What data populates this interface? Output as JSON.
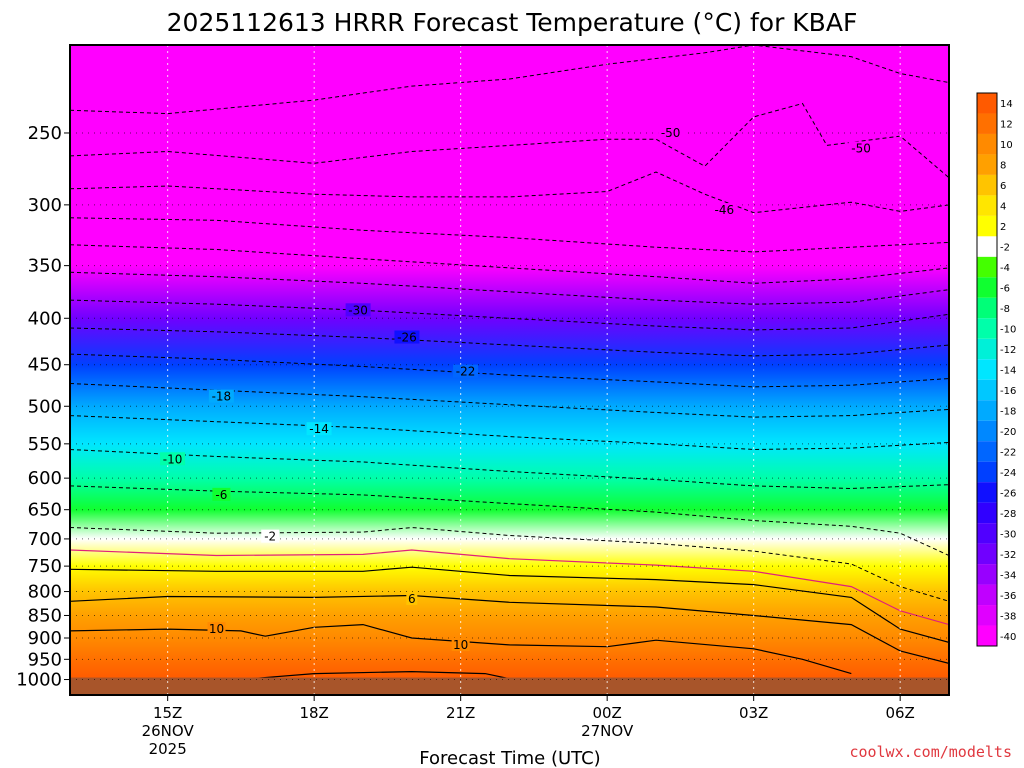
{
  "chart_data": {
    "type": "heatmap",
    "title": "2025112613 HRRR Forecast Temperature (°C) for KBAF",
    "xlabel": "Forecast Time (UTC)",
    "ylabel": "",
    "credit": "coolwx.com/modelts",
    "y_axis": {
      "unit": "hPa",
      "scale": "log",
      "range": [
        1040,
        200
      ],
      "ticks": [
        "250",
        "300",
        "350",
        "400",
        "450",
        "500",
        "550",
        "600",
        "650",
        "700",
        "750",
        "800",
        "850",
        "900",
        "950",
        "1000"
      ]
    },
    "x_axis": {
      "range_hours": [
        13,
        31
      ],
      "ticks": [
        {
          "hour": 15,
          "label": "15Z",
          "sub1": "26NOV",
          "sub2": "2025"
        },
        {
          "hour": 18,
          "label": "18Z",
          "sub1": "",
          "sub2": ""
        },
        {
          "hour": 21,
          "label": "21Z",
          "sub1": "",
          "sub2": ""
        },
        {
          "hour": 24,
          "label": "00Z",
          "sub1": "27NOV",
          "sub2": ""
        },
        {
          "hour": 27,
          "label": "03Z",
          "sub1": "",
          "sub2": ""
        },
        {
          "hour": 30,
          "label": "06Z",
          "sub1": "",
          "sub2": ""
        }
      ]
    },
    "colorbar": {
      "levels": [
        "14",
        "12",
        "10",
        "8",
        "6",
        "4",
        "2",
        "-2",
        "-4",
        "-6",
        "-8",
        "-10",
        "-12",
        "-14",
        "-16",
        "-18",
        "-20",
        "-22",
        "-24",
        "-26",
        "-28",
        "-30",
        "-32",
        "-34",
        "-36",
        "-38",
        "-40"
      ],
      "colors": [
        "#ff5a00",
        "#ff7000",
        "#ff8a00",
        "#ffa000",
        "#ffc400",
        "#ffe600",
        "#ffff00",
        "#ffffff",
        "#44ff00",
        "#10ff30",
        "#00ff78",
        "#00ffaa",
        "#00f0d8",
        "#00e6ff",
        "#00c8ff",
        "#00aaff",
        "#0088ff",
        "#0066ff",
        "#0040ff",
        "#1010ff",
        "#3000ff",
        "#5000ff",
        "#7000ff",
        "#9800ff",
        "#c000ff",
        "#e000ff",
        "#ff00ff"
      ]
    },
    "temperature_profile": [
      {
        "p": 220,
        "t": -54
      },
      {
        "p": 250,
        "t": -52
      },
      {
        "p": 300,
        "t": -47
      },
      {
        "p": 350,
        "t": -40
      },
      {
        "p": 400,
        "t": -31
      },
      {
        "p": 450,
        "t": -24
      },
      {
        "p": 500,
        "t": -18
      },
      {
        "p": 550,
        "t": -13
      },
      {
        "p": 600,
        "t": -9
      },
      {
        "p": 650,
        "t": -5
      },
      {
        "p": 700,
        "t": -1
      },
      {
        "p": 750,
        "t": 2
      },
      {
        "p": 800,
        "t": 6
      },
      {
        "p": 850,
        "t": 8
      },
      {
        "p": 900,
        "t": 10
      },
      {
        "p": 950,
        "t": 12
      },
      {
        "p": 1000,
        "t": 14
      }
    ],
    "ground_pressure_hpa": 995,
    "ground_color": "#a8552a",
    "contours": [
      {
        "value": -50,
        "dashed": true,
        "pts": [
          [
            13,
            236
          ],
          [
            15,
            238
          ],
          [
            18,
            230
          ],
          [
            20,
            222
          ],
          [
            22,
            218
          ],
          [
            24,
            210
          ],
          [
            26,
            204
          ],
          [
            27,
            200
          ],
          [
            29,
            206
          ],
          [
            30,
            215
          ],
          [
            31,
            220
          ]
        ]
      },
      {
        "value": -50,
        "dashed": true,
        "pts": [
          [
            13,
            265
          ],
          [
            15,
            262
          ],
          [
            18,
            270
          ],
          [
            20,
            262
          ],
          [
            22,
            258
          ],
          [
            24,
            254
          ],
          [
            25,
            254
          ],
          [
            26,
            272
          ],
          [
            27,
            240
          ],
          [
            28,
            232
          ],
          [
            28.5,
            258
          ],
          [
            30,
            252
          ],
          [
            31,
            280
          ]
        ]
      },
      {
        "value": -46,
        "dashed": true,
        "pts": [
          [
            13,
            288
          ],
          [
            15,
            286
          ],
          [
            18,
            292
          ],
          [
            20,
            294
          ],
          [
            22,
            294
          ],
          [
            24,
            290
          ],
          [
            25,
            276
          ],
          [
            26,
            292
          ],
          [
            27,
            306
          ],
          [
            29,
            298
          ],
          [
            30,
            305
          ],
          [
            31,
            300
          ]
        ]
      },
      {
        "value": -42,
        "dashed": true,
        "pts": [
          [
            13,
            310
          ],
          [
            16,
            312
          ],
          [
            19,
            320
          ],
          [
            22,
            326
          ],
          [
            25,
            334
          ],
          [
            27,
            338
          ],
          [
            29,
            334
          ],
          [
            31,
            330
          ]
        ]
      },
      {
        "value": -38,
        "dashed": true,
        "pts": [
          [
            13,
            332
          ],
          [
            16,
            336
          ],
          [
            19,
            344
          ],
          [
            22,
            352
          ],
          [
            25,
            360
          ],
          [
            27,
            366
          ],
          [
            29,
            362
          ],
          [
            31,
            352
          ]
        ]
      },
      {
        "value": -34,
        "dashed": true,
        "pts": [
          [
            13,
            356
          ],
          [
            16,
            360
          ],
          [
            19,
            366
          ],
          [
            22,
            374
          ],
          [
            25,
            382
          ],
          [
            27,
            386
          ],
          [
            29,
            384
          ],
          [
            31,
            372
          ]
        ]
      },
      {
        "value": -30,
        "dashed": true,
        "pts": [
          [
            13,
            382
          ],
          [
            16,
            386
          ],
          [
            19,
            392
          ],
          [
            22,
            400
          ],
          [
            25,
            408
          ],
          [
            27,
            412
          ],
          [
            29,
            410
          ],
          [
            31,
            396
          ]
        ]
      },
      {
        "value": -26,
        "dashed": true,
        "pts": [
          [
            13,
            410
          ],
          [
            16,
            414
          ],
          [
            19,
            420
          ],
          [
            22,
            428
          ],
          [
            25,
            436
          ],
          [
            27,
            440
          ],
          [
            29,
            438
          ],
          [
            31,
            428
          ]
        ]
      },
      {
        "value": -22,
        "dashed": true,
        "pts": [
          [
            13,
            438
          ],
          [
            16,
            444
          ],
          [
            19,
            452
          ],
          [
            22,
            462
          ],
          [
            25,
            470
          ],
          [
            27,
            476
          ],
          [
            29,
            474
          ],
          [
            31,
            466
          ]
        ]
      },
      {
        "value": -18,
        "dashed": true,
        "pts": [
          [
            13,
            472
          ],
          [
            16,
            480
          ],
          [
            19,
            488
          ],
          [
            22,
            498
          ],
          [
            25,
            508
          ],
          [
            27,
            514
          ],
          [
            29,
            512
          ],
          [
            31,
            504
          ]
        ]
      },
      {
        "value": -14,
        "dashed": true,
        "pts": [
          [
            13,
            512
          ],
          [
            16,
            520
          ],
          [
            19,
            528
          ],
          [
            22,
            540
          ],
          [
            25,
            550
          ],
          [
            27,
            558
          ],
          [
            29,
            556
          ],
          [
            31,
            548
          ]
        ]
      },
      {
        "value": -10,
        "dashed": true,
        "pts": [
          [
            13,
            558
          ],
          [
            16,
            568
          ],
          [
            19,
            576
          ],
          [
            22,
            590
          ],
          [
            25,
            602
          ],
          [
            27,
            612
          ],
          [
            29,
            616
          ],
          [
            31,
            610
          ]
        ]
      },
      {
        "value": -6,
        "dashed": true,
        "pts": [
          [
            13,
            612
          ],
          [
            16,
            620
          ],
          [
            19,
            626
          ],
          [
            22,
            640
          ],
          [
            25,
            654
          ],
          [
            27,
            668
          ],
          [
            29,
            678
          ],
          [
            30,
            690
          ],
          [
            31,
            730
          ]
        ]
      },
      {
        "value": -2,
        "dashed": true,
        "pts": [
          [
            13,
            680
          ],
          [
            16,
            690
          ],
          [
            19,
            688
          ],
          [
            20,
            680
          ],
          [
            22,
            694
          ],
          [
            25,
            708
          ],
          [
            27,
            722
          ],
          [
            29,
            746
          ],
          [
            30,
            790
          ],
          [
            31,
            820
          ]
        ]
      },
      {
        "value": 0,
        "dashed": false,
        "color": "#e0207a",
        "pts": [
          [
            13,
            720
          ],
          [
            16,
            730
          ],
          [
            19,
            728
          ],
          [
            20,
            720
          ],
          [
            22,
            736
          ],
          [
            25,
            748
          ],
          [
            27,
            760
          ],
          [
            29,
            790
          ],
          [
            30,
            840
          ],
          [
            31,
            870
          ]
        ]
      },
      {
        "value": 2,
        "dashed": false,
        "pts": [
          [
            13,
            756
          ],
          [
            16,
            760
          ],
          [
            19,
            760
          ],
          [
            20,
            752
          ],
          [
            22,
            768
          ],
          [
            25,
            776
          ],
          [
            27,
            786
          ],
          [
            29,
            812
          ],
          [
            30,
            880
          ],
          [
            31,
            910
          ]
        ]
      },
      {
        "value": 6,
        "dashed": false,
        "pts": [
          [
            13,
            820
          ],
          [
            15,
            810
          ],
          [
            18,
            812
          ],
          [
            20,
            808
          ],
          [
            22,
            822
          ],
          [
            25,
            832
          ],
          [
            27,
            850
          ],
          [
            29,
            870
          ],
          [
            30,
            930
          ],
          [
            31,
            960
          ]
        ]
      },
      {
        "value": 10,
        "dashed": false,
        "pts": [
          [
            13,
            884
          ],
          [
            15,
            880
          ],
          [
            16.5,
            884
          ],
          [
            17,
            896
          ],
          [
            18,
            876
          ],
          [
            19,
            870
          ],
          [
            20,
            900
          ],
          [
            22,
            916
          ],
          [
            24,
            920
          ],
          [
            25,
            905
          ],
          [
            27,
            925
          ],
          [
            28,
            950
          ],
          [
            29,
            985
          ]
        ]
      },
      {
        "value": 14,
        "dashed": false,
        "pts": [
          [
            16.5,
            1000
          ],
          [
            18,
            985
          ],
          [
            20,
            980
          ],
          [
            21.5,
            985
          ],
          [
            22,
            998
          ]
        ]
      }
    ],
    "contour_labels": [
      {
        "text": "-50",
        "x": 25.3,
        "y": 250
      },
      {
        "text": "-50",
        "x": 29.2,
        "y": 260
      },
      {
        "text": "-46",
        "x": 26.4,
        "y": 304
      },
      {
        "text": "-30",
        "x": 18.9,
        "y": 392
      },
      {
        "text": "-26",
        "x": 19.9,
        "y": 420
      },
      {
        "text": "-22",
        "x": 21.1,
        "y": 458
      },
      {
        "text": "-18",
        "x": 16.1,
        "y": 488
      },
      {
        "text": "-14",
        "x": 18.1,
        "y": 530
      },
      {
        "text": "-10",
        "x": 15.1,
        "y": 572
      },
      {
        "text": "-6",
        "x": 16.1,
        "y": 626
      },
      {
        "text": "-2",
        "x": 17.1,
        "y": 696
      },
      {
        "text": "6",
        "x": 20.0,
        "y": 815
      },
      {
        "text": "10",
        "x": 16.0,
        "y": 880
      },
      {
        "text": "10",
        "x": 21.0,
        "y": 916
      }
    ],
    "grid": true
  }
}
